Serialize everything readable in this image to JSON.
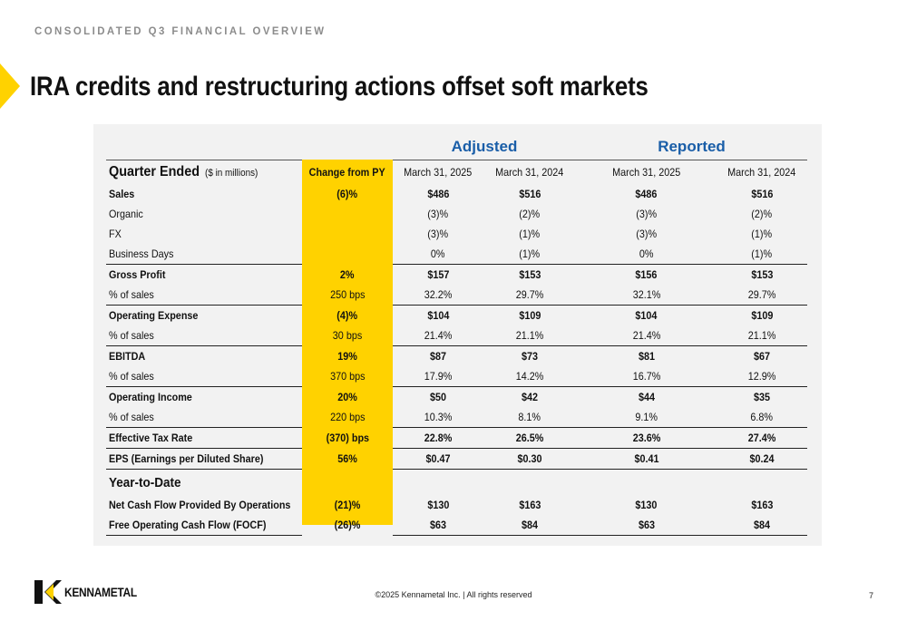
{
  "header": {
    "subtitle": "CONSOLIDATED Q3 FINANCIAL OVERVIEW",
    "title": "IRA credits and restructuring actions offset soft markets"
  },
  "table": {
    "groups": {
      "adjusted": "Adjusted",
      "reported": "Reported"
    },
    "header": {
      "quarter_label": "Quarter Ended",
      "quarter_sub": "($ in millions)",
      "change": "Change from PY",
      "adj_2025": "March 31, 2025",
      "adj_2024": "March 31, 2024",
      "rep_2025": "March 31, 2025",
      "rep_2024": "March 31, 2024"
    },
    "rows": [
      {
        "label": "Sales",
        "change": "(6)%",
        "adj_2025": "$486",
        "adj_2024": "$516",
        "rep_2025": "$486",
        "rep_2024": "$516"
      },
      {
        "label": "Organic",
        "change": "",
        "adj_2025": "(3)%",
        "adj_2024": "(2)%",
        "rep_2025": "(3)%",
        "rep_2024": "(2)%"
      },
      {
        "label": "FX",
        "change": "",
        "adj_2025": "(3)%",
        "adj_2024": "(1)%",
        "rep_2025": "(3)%",
        "rep_2024": "(1)%"
      },
      {
        "label": "Business Days",
        "change": "",
        "adj_2025": "0%",
        "adj_2024": "(1)%",
        "rep_2025": "0%",
        "rep_2024": "(1)%"
      },
      {
        "label": "Gross Profit",
        "change": "2%",
        "adj_2025": "$157",
        "adj_2024": "$153",
        "rep_2025": "$156",
        "rep_2024": "$153"
      },
      {
        "label": "% of sales",
        "change": "250 bps",
        "adj_2025": "32.2%",
        "adj_2024": "29.7%",
        "rep_2025": "32.1%",
        "rep_2024": "29.7%"
      },
      {
        "label": "Operating Expense",
        "change": "(4)%",
        "adj_2025": "$104",
        "adj_2024": "$109",
        "rep_2025": "$104",
        "rep_2024": "$109"
      },
      {
        "label": "% of sales",
        "change": "30 bps",
        "adj_2025": "21.4%",
        "adj_2024": "21.1%",
        "rep_2025": "21.4%",
        "rep_2024": "21.1%"
      },
      {
        "label": "EBITDA",
        "change": "19%",
        "adj_2025": "$87",
        "adj_2024": "$73",
        "rep_2025": "$81",
        "rep_2024": "$67"
      },
      {
        "label": "% of sales",
        "change": "370 bps",
        "adj_2025": "17.9%",
        "adj_2024": "14.2%",
        "rep_2025": "16.7%",
        "rep_2024": "12.9%"
      },
      {
        "label": "Operating Income",
        "change": "20%",
        "adj_2025": "$50",
        "adj_2024": "$42",
        "rep_2025": "$44",
        "rep_2024": "$35"
      },
      {
        "label": "% of sales",
        "change": "220 bps",
        "adj_2025": "10.3%",
        "adj_2024": "8.1%",
        "rep_2025": "9.1%",
        "rep_2024": "6.8%"
      },
      {
        "label": "Effective Tax Rate",
        "change": "(370) bps",
        "adj_2025": "22.8%",
        "adj_2024": "26.5%",
        "rep_2025": "23.6%",
        "rep_2024": "27.4%"
      },
      {
        "label": "EPS (Earnings per Diluted Share)",
        "change": "56%",
        "adj_2025": "$0.47",
        "adj_2024": "$0.30",
        "rep_2025": "$0.41",
        "rep_2024": "$0.24"
      }
    ],
    "ytd_label": "Year-to-Date",
    "ytd_rows": [
      {
        "label": "Net Cash Flow Provided By Operations",
        "change": "(21)%",
        "adj_2025": "$130",
        "adj_2024": "$163",
        "rep_2025": "$130",
        "rep_2024": "$163"
      },
      {
        "label": "Free Operating Cash Flow (FOCF)",
        "change": "(26)%",
        "adj_2025": "$63",
        "adj_2024": "$84",
        "rep_2025": "$63",
        "rep_2024": "$84"
      }
    ]
  },
  "footer": {
    "logo_text": "KENNAMETAL",
    "copyright": "©2025 Kennametal Inc.  |  All rights reserved",
    "page_number": "7"
  },
  "colors": {
    "accent_yellow": "#ffd200",
    "group_blue": "#1a5ea8",
    "subtitle_gray": "#8c8c8c",
    "panel_gray": "#f2f2f2"
  },
  "icons": {
    "slide_marker": "yellow-chevron-arrow-icon",
    "logo_mark": "kennametal-k-logo-icon"
  }
}
